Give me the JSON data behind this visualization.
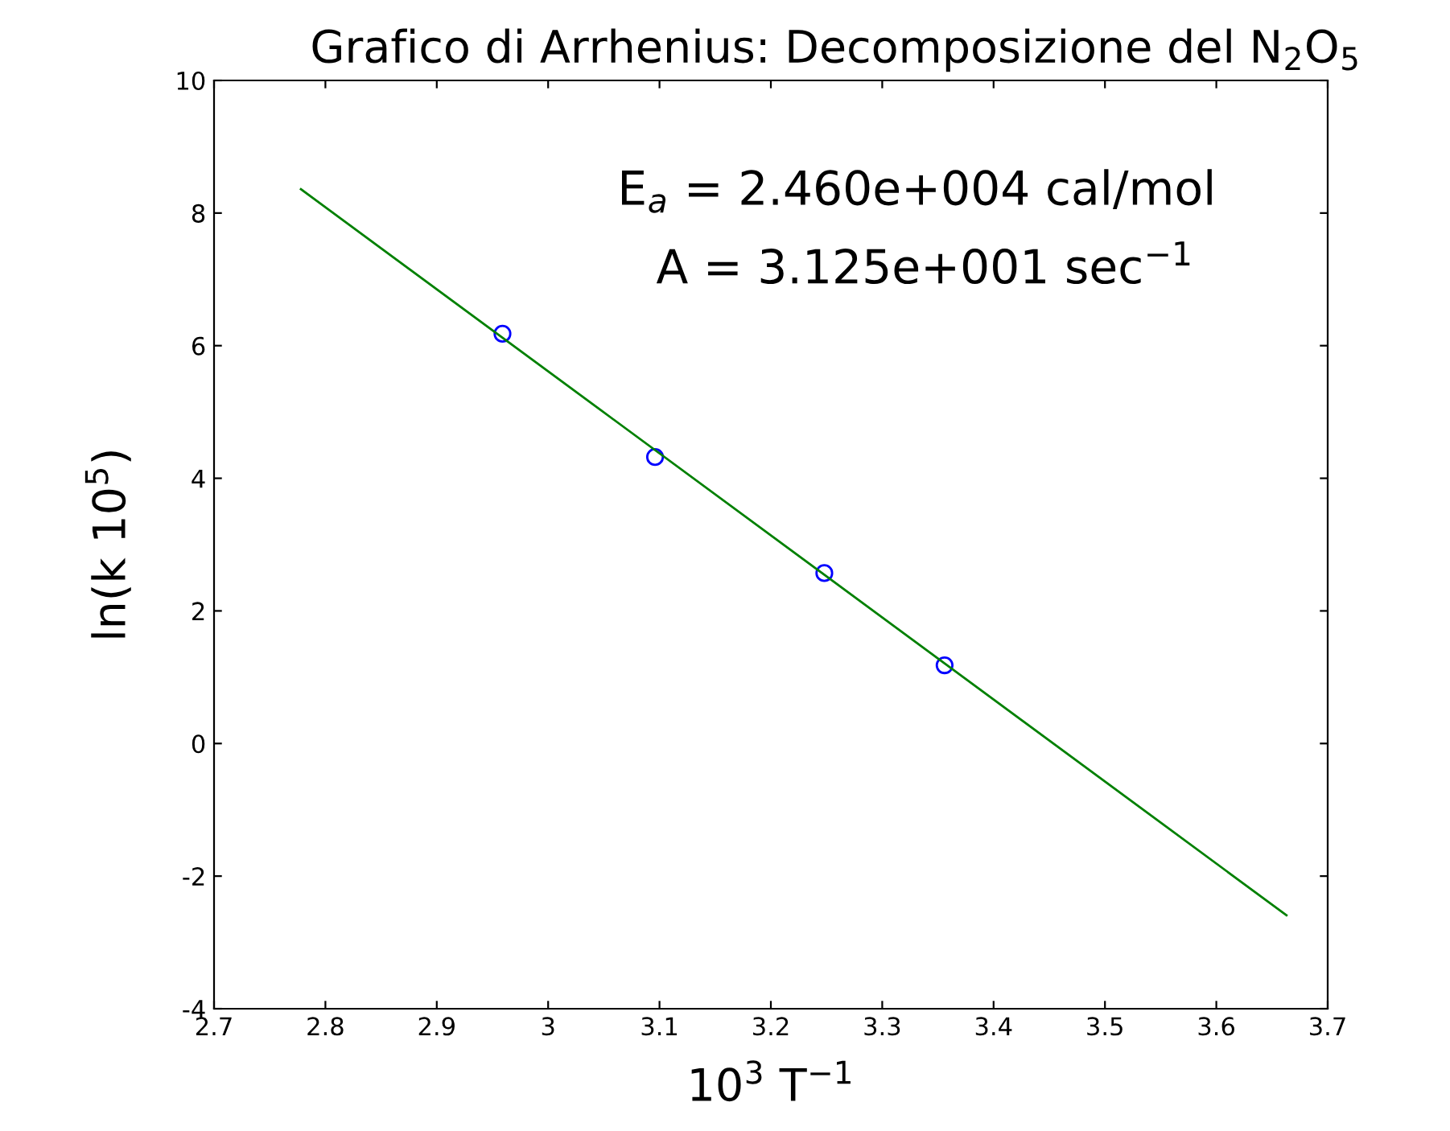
{
  "chart_data": {
    "type": "scatter",
    "title": "Grafico di Arrhenius: Decomposizione del N$_{2}$O$_{5}$",
    "xlabel": "10$^{3}$ T$^{−1}$",
    "ylabel": "ln(k 10$^{5}$)",
    "annotations": [
      "E$_{a}$ = 2.460e+004 cal/mol",
      "A = 3.125e+001 sec$^{−1}$"
    ],
    "series": [
      {
        "color": "#0000ff",
        "marker": "circle",
        "x": [
          2.959,
          3.096,
          3.248,
          3.356
        ],
        "values": [
          6.18,
          4.32,
          2.57,
          1.18
        ]
      },
      {
        "type": "line",
        "color": "#008000",
        "marker": "none",
        "x": [
          2.778,
          3.663
        ],
        "values": [
          8.36,
          -2.59
        ]
      }
    ],
    "xlim": [
      2.7,
      3.7
    ],
    "xticks": [
      2.7,
      2.8,
      2.9,
      3,
      3.1,
      3.2,
      3.3,
      3.4,
      3.5,
      3.6,
      3.7
    ],
    "ylim": [
      -4,
      10
    ],
    "yticks": [
      -4,
      -2,
      0,
      2,
      4,
      6,
      8,
      10
    ],
    "grid": false,
    "legend": false
  }
}
